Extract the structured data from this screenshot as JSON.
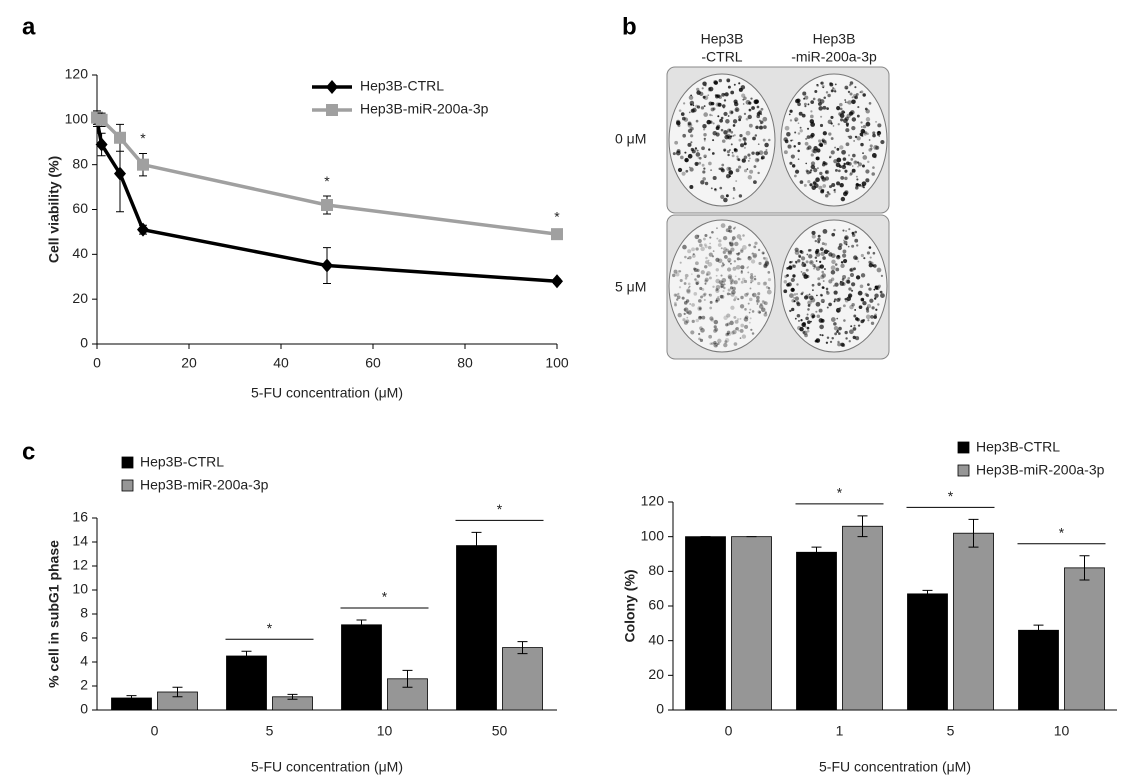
{
  "chart_data": [
    {
      "type": "line",
      "panel": "a",
      "xlabel": "5-FU concentration (μM)",
      "ylabel": "Cell viability (%)",
      "x": [
        0,
        1,
        5,
        10,
        50,
        100
      ],
      "xlim": [
        0,
        100
      ],
      "xticks": [
        0,
        20,
        40,
        60,
        80,
        100
      ],
      "ylim": [
        0,
        120
      ],
      "yticks": [
        0,
        20,
        40,
        60,
        80,
        100,
        120
      ],
      "legend": "upper right",
      "series": [
        {
          "name": "Hep3B-CTRL",
          "color": "#000000",
          "marker": "diamond",
          "values": [
            100,
            89,
            76,
            51,
            35,
            28
          ],
          "errors": [
            3,
            5,
            17,
            2,
            8,
            1
          ]
        },
        {
          "name": "Hep3B-miR-200a-3p",
          "color": "#a0a0a0",
          "marker": "square",
          "values": [
            101,
            100,
            92,
            80,
            62,
            49
          ],
          "errors": [
            3,
            3,
            6,
            5,
            4,
            1
          ]
        }
      ],
      "significance": [
        null,
        null,
        null,
        "*",
        "*",
        "*"
      ]
    },
    {
      "type": "bar",
      "panel": "c",
      "xlabel": "5-FU concentration (μM)",
      "ylabel": "% cell in subG1 phase",
      "categories": [
        "0",
        "5",
        "10",
        "50"
      ],
      "ylim": [
        0,
        16
      ],
      "yticks": [
        0,
        2,
        4,
        6,
        8,
        10,
        12,
        14,
        16
      ],
      "legend": "above left",
      "series": [
        {
          "name": "Hep3B-CTRL",
          "color": "#000000",
          "values": [
            1.0,
            4.5,
            7.1,
            13.7
          ],
          "errors": [
            0.2,
            0.4,
            0.4,
            1.1
          ]
        },
        {
          "name": "Hep3B-miR-200a-3p",
          "color": "#969696",
          "values": [
            1.5,
            1.1,
            2.6,
            5.2
          ],
          "errors": [
            0.4,
            0.2,
            0.7,
            0.5
          ]
        }
      ],
      "significance": [
        null,
        "*",
        "*",
        "*"
      ]
    },
    {
      "type": "bar",
      "xlabel": "5-FU concentration (μM)",
      "ylabel": "Colony (%)",
      "categories": [
        "0",
        "1",
        "5",
        "10"
      ],
      "ylim": [
        0,
        120
      ],
      "yticks": [
        0,
        20,
        40,
        60,
        80,
        100,
        120
      ],
      "legend": "above right",
      "series": [
        {
          "name": "Hep3B-CTRL",
          "color": "#000000",
          "values": [
            100,
            91,
            67,
            46
          ],
          "errors": [
            0,
            3,
            2,
            3
          ]
        },
        {
          "name": "Hep3B-miR-200a-3p",
          "color": "#969696",
          "values": [
            100,
            106,
            102,
            82
          ],
          "errors": [
            0,
            6,
            8,
            7
          ]
        }
      ],
      "significance": [
        null,
        "*",
        "*",
        "*"
      ]
    }
  ],
  "panel_b": {
    "label": "b",
    "columns": [
      [
        "Hep3B",
        "-CTRL"
      ],
      [
        "Hep3B",
        "-miR-200a-3p"
      ]
    ],
    "rows": [
      "0 μM",
      "5 μM"
    ]
  }
}
